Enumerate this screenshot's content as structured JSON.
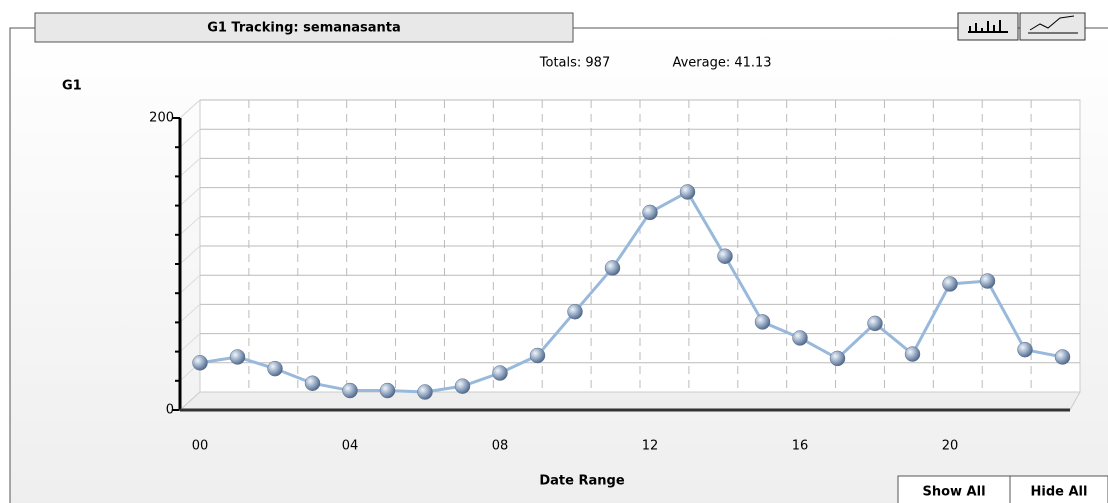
{
  "header": {
    "tab_title": "G1 Tracking: semanasanta",
    "buttons": [
      "Show All",
      "Hide All"
    ]
  },
  "chart_data": {
    "type": "line",
    "totals": "Totals: 987",
    "average": "Average: 41.13",
    "y_label": "G1",
    "x_label": "Date Range",
    "categories": [
      "00",
      null,
      null,
      null,
      "04",
      null,
      null,
      null,
      "08",
      null,
      null,
      null,
      "12",
      null,
      null,
      null,
      "16",
      null,
      null,
      null,
      "20",
      null,
      null,
      null
    ],
    "series": [
      {
        "name": "G1",
        "color": "#98b9dc",
        "values": [
          20,
          24,
          16,
          6,
          1,
          1,
          0,
          4,
          13,
          25,
          55,
          85,
          123,
          137,
          93,
          48,
          37,
          23,
          47,
          26,
          74,
          76,
          29,
          24
        ]
      }
    ],
    "ylim": [
      0,
      200
    ],
    "yticks": [
      0,
      200
    ],
    "grid": true
  }
}
